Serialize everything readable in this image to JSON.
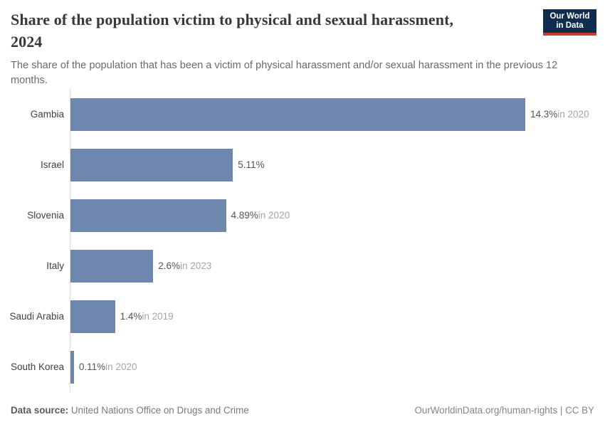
{
  "header": {
    "title_line1": "Share of the population victim to physical and sexual harassment,",
    "title_line2": "2024",
    "subtitle": "The share of the population that has been a victim of physical harassment and/or sexual harassment in the previous 12 months.",
    "logo": {
      "line1": "Our World",
      "line2": "in Data",
      "bg_color": "#102d50",
      "accent_color": "#c93c34"
    }
  },
  "chart_data": {
    "type": "bar",
    "orientation": "horizontal",
    "title": "Share of the population victim to physical and sexual harassment, 2024",
    "categories": [
      "Gambia",
      "Israel",
      "Slovenia",
      "Italy",
      "Saudi Arabia",
      "South Korea"
    ],
    "values": [
      14.3,
      5.11,
      4.89,
      2.6,
      1.4,
      0.11
    ],
    "value_labels": [
      "14.3%",
      "5.11%",
      "4.89%",
      "2.6%",
      "1.4%",
      "0.11%"
    ],
    "year_labels": [
      "in 2020",
      "",
      "in 2020",
      "in 2023",
      "in 2019",
      "in 2020"
    ],
    "xlim": [
      0,
      14.3
    ],
    "bar_color": "#6d87ae",
    "grid": false,
    "legend": "none",
    "unit": "%"
  },
  "footer": {
    "source_label": "Data source:",
    "source_value": " United Nations Office on Drugs and Crime",
    "attribution": "OurWorldinData.org/human-rights | CC BY"
  }
}
